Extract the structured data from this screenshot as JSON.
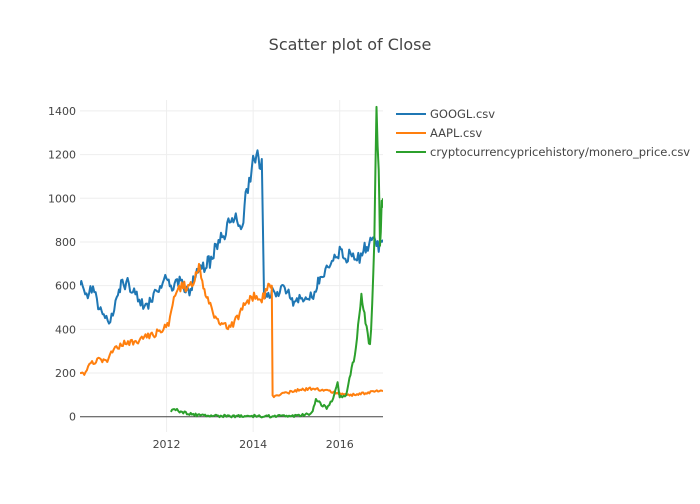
{
  "chart_data": {
    "type": "line",
    "title": "Scatter plot of Close",
    "xlabel": "",
    "ylabel": "",
    "x_range": [
      2010.0,
      2017.0
    ],
    "ylim": [
      -70,
      1450
    ],
    "x_ticks": [
      {
        "value": 2012,
        "label": "2012"
      },
      {
        "value": 2014,
        "label": "2014"
      },
      {
        "value": 2016,
        "label": "2016"
      }
    ],
    "y_ticks": [
      {
        "value": 0,
        "label": "0"
      },
      {
        "value": 200,
        "label": "200"
      },
      {
        "value": 400,
        "label": "400"
      },
      {
        "value": 600,
        "label": "600"
      },
      {
        "value": 800,
        "label": "800"
      },
      {
        "value": 1000,
        "label": "1000"
      },
      {
        "value": 1200,
        "label": "1200"
      },
      {
        "value": 1400,
        "label": "1400"
      }
    ],
    "grid": true,
    "legend_position": "top-right",
    "series": [
      {
        "name": "GOOGL.csv",
        "color": "#1f77b4",
        "points": [
          [
            2010.0,
            620
          ],
          [
            2010.15,
            560
          ],
          [
            2010.3,
            590
          ],
          [
            2010.45,
            490
          ],
          [
            2010.55,
            460
          ],
          [
            2010.7,
            440
          ],
          [
            2010.85,
            530
          ],
          [
            2010.95,
            600
          ],
          [
            2011.1,
            610
          ],
          [
            2011.25,
            580
          ],
          [
            2011.4,
            520
          ],
          [
            2011.55,
            500
          ],
          [
            2011.7,
            560
          ],
          [
            2011.85,
            590
          ],
          [
            2012.0,
            640
          ],
          [
            2012.1,
            580
          ],
          [
            2012.3,
            620
          ],
          [
            2012.5,
            570
          ],
          [
            2012.7,
            650
          ],
          [
            2012.9,
            700
          ],
          [
            2013.0,
            710
          ],
          [
            2013.2,
            800
          ],
          [
            2013.4,
            870
          ],
          [
            2013.6,
            900
          ],
          [
            2013.75,
            880
          ],
          [
            2013.85,
            1040
          ],
          [
            2014.0,
            1150
          ],
          [
            2014.1,
            1200
          ],
          [
            2014.2,
            1180
          ],
          [
            2014.25,
            570
          ],
          [
            2014.35,
            560
          ],
          [
            2014.5,
            570
          ],
          [
            2014.7,
            580
          ],
          [
            2014.85,
            560
          ],
          [
            2014.95,
            520
          ],
          [
            2015.1,
            540
          ],
          [
            2015.3,
            545
          ],
          [
            2015.45,
            560
          ],
          [
            2015.55,
            660
          ],
          [
            2015.7,
            680
          ],
          [
            2015.85,
            710
          ],
          [
            2016.0,
            760
          ],
          [
            2016.1,
            730
          ],
          [
            2016.25,
            750
          ],
          [
            2016.4,
            720
          ],
          [
            2016.55,
            760
          ],
          [
            2016.65,
            790
          ],
          [
            2016.8,
            810
          ],
          [
            2016.9,
            780
          ],
          [
            2017.0,
            810
          ]
        ]
      },
      {
        "name": "AAPL.csv",
        "color": "#ff7f0e",
        "points": [
          [
            2010.0,
            210
          ],
          [
            2010.1,
            200
          ],
          [
            2010.25,
            240
          ],
          [
            2010.4,
            260
          ],
          [
            2010.6,
            250
          ],
          [
            2010.75,
            300
          ],
          [
            2010.9,
            320
          ],
          [
            2011.05,
            345
          ],
          [
            2011.2,
            340
          ],
          [
            2011.4,
            350
          ],
          [
            2011.6,
            370
          ],
          [
            2011.75,
            380
          ],
          [
            2011.9,
            400
          ],
          [
            2012.05,
            420
          ],
          [
            2012.2,
            560
          ],
          [
            2012.35,
            590
          ],
          [
            2012.5,
            600
          ],
          [
            2012.65,
            640
          ],
          [
            2012.75,
            670
          ],
          [
            2012.85,
            580
          ],
          [
            2012.95,
            540
          ],
          [
            2013.1,
            460
          ],
          [
            2013.3,
            420
          ],
          [
            2013.45,
            400
          ],
          [
            2013.6,
            440
          ],
          [
            2013.75,
            490
          ],
          [
            2013.9,
            540
          ],
          [
            2014.05,
            560
          ],
          [
            2014.2,
            540
          ],
          [
            2014.35,
            590
          ],
          [
            2014.43,
            600
          ],
          [
            2014.45,
            92
          ],
          [
            2014.6,
            100
          ],
          [
            2014.8,
            110
          ],
          [
            2015.0,
            120
          ],
          [
            2015.2,
            125
          ],
          [
            2015.4,
            130
          ],
          [
            2015.6,
            120
          ],
          [
            2015.8,
            115
          ],
          [
            2016.0,
            105
          ],
          [
            2016.2,
            100
          ],
          [
            2016.4,
            100
          ],
          [
            2016.6,
            110
          ],
          [
            2016.8,
            115
          ],
          [
            2017.0,
            117
          ]
        ]
      },
      {
        "name": "cryptocurrencypricehistory/monero_price.csv",
        "color": "#2ca02c",
        "points": [
          [
            2012.1,
            25
          ],
          [
            2012.15,
            40
          ],
          [
            2012.3,
            25
          ],
          [
            2012.5,
            15
          ],
          [
            2012.7,
            8
          ],
          [
            2013.0,
            4
          ],
          [
            2013.5,
            3
          ],
          [
            2014.0,
            3
          ],
          [
            2014.5,
            2
          ],
          [
            2014.8,
            2
          ],
          [
            2015.0,
            5
          ],
          [
            2015.2,
            8
          ],
          [
            2015.35,
            15
          ],
          [
            2015.45,
            80
          ],
          [
            2015.55,
            60
          ],
          [
            2015.7,
            40
          ],
          [
            2015.85,
            80
          ],
          [
            2015.95,
            160
          ],
          [
            2016.0,
            90
          ],
          [
            2016.15,
            100
          ],
          [
            2016.25,
            200
          ],
          [
            2016.35,
            280
          ],
          [
            2016.45,
            450
          ],
          [
            2016.5,
            580
          ],
          [
            2016.55,
            500
          ],
          [
            2016.62,
            400
          ],
          [
            2016.7,
            320
          ],
          [
            2016.75,
            500
          ],
          [
            2016.8,
            800
          ],
          [
            2016.85,
            1450
          ],
          [
            2016.9,
            1100
          ],
          [
            2016.93,
            800
          ],
          [
            2016.97,
            950
          ],
          [
            2017.0,
            1000
          ]
        ]
      }
    ]
  }
}
